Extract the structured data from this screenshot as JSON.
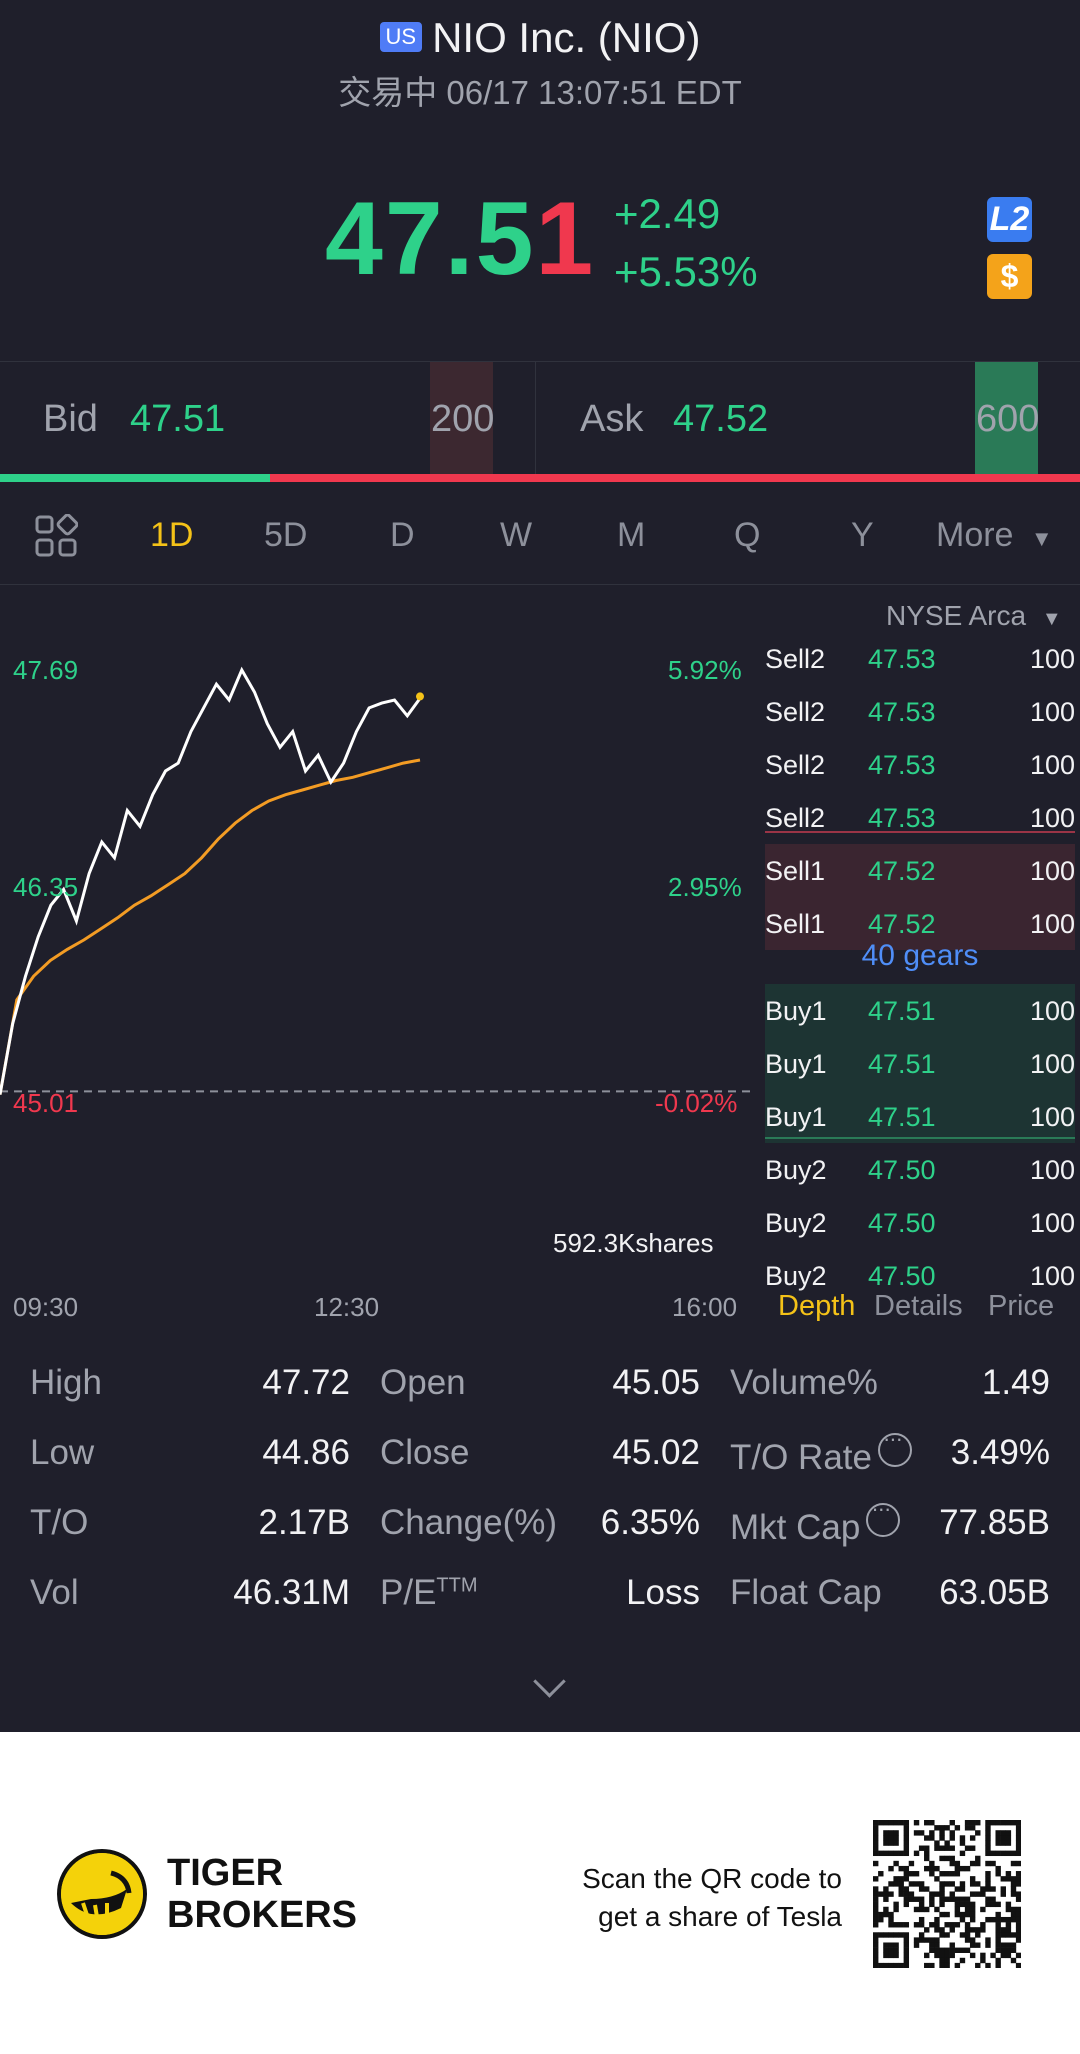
{
  "header": {
    "market_badge": "US",
    "title": "NIO Inc. (NIO)",
    "subtitle": "交易中 06/17 13:07:51 EDT"
  },
  "quote": {
    "price_int": "47.5",
    "price_last": "1",
    "change": "+2.49",
    "change_pct": "+5.53%",
    "l2_badge": "L2",
    "currency_badge": "$"
  },
  "bid_ask": {
    "bid_label": "Bid",
    "bid_price": "47.51",
    "bid_qty": "200",
    "ask_label": "Ask",
    "ask_price": "47.52",
    "ask_qty": "600",
    "bid_ratio": 0.25
  },
  "periods": {
    "items": [
      "1D",
      "5D",
      "D",
      "W",
      "M",
      "Q",
      "Y"
    ],
    "active": "1D",
    "more": "More"
  },
  "chart_data": {
    "type": "line",
    "price_ticks": [
      "47.69",
      "46.35",
      "45.01"
    ],
    "pct_ticks": [
      "5.92%",
      "2.95%",
      "-0.02%"
    ],
    "x_ticks": [
      "09:30",
      "12:30",
      "16:00"
    ],
    "volume_label": "592.3Kshares",
    "prev_close": 45.02,
    "ylim": [
      45.01,
      47.69
    ],
    "series": [
      {
        "values": [
          45.0,
          45.45,
          45.75,
          46.0,
          46.2,
          46.3,
          46.1,
          46.4,
          46.6,
          46.5,
          46.8,
          46.7,
          46.9,
          47.05,
          47.1,
          47.3,
          47.45,
          47.6,
          47.5,
          47.69,
          47.55,
          47.35,
          47.2,
          47.3,
          47.05,
          47.15,
          46.98,
          47.1,
          47.3,
          47.45,
          47.48,
          47.5,
          47.4,
          47.51
        ]
      },
      {
        "values": [
          45.0,
          45.6,
          45.75,
          45.85,
          45.92,
          45.98,
          46.05,
          46.12,
          46.2,
          46.26,
          46.33,
          46.4,
          46.5,
          46.62,
          46.72,
          46.8,
          46.86,
          46.9,
          46.93,
          46.96,
          46.99,
          47.01,
          47.04,
          47.07,
          47.1,
          47.12
        ]
      }
    ]
  },
  "order_book": {
    "exchange": "NYSE Arca",
    "rows": [
      {
        "side": "Sell2",
        "price": "47.53",
        "qty": "100"
      },
      {
        "side": "Sell2",
        "price": "47.53",
        "qty": "100"
      },
      {
        "side": "Sell2",
        "price": "47.53",
        "qty": "100"
      },
      {
        "side": "Sell2",
        "price": "47.53",
        "qty": "100"
      },
      {
        "side": "Sell1",
        "price": "47.52",
        "qty": "100"
      },
      {
        "side": "Sell1",
        "price": "47.52",
        "qty": "100"
      },
      {
        "side": "Buy1",
        "price": "47.51",
        "qty": "100"
      },
      {
        "side": "Buy1",
        "price": "47.51",
        "qty": "100"
      },
      {
        "side": "Buy1",
        "price": "47.51",
        "qty": "100"
      },
      {
        "side": "Buy2",
        "price": "47.50",
        "qty": "100"
      },
      {
        "side": "Buy2",
        "price": "47.50",
        "qty": "100"
      },
      {
        "side": "Buy2",
        "price": "47.50",
        "qty": "100"
      }
    ],
    "gears": "40 gears",
    "tabs": [
      "Depth",
      "Details",
      "Price"
    ]
  },
  "stats": [
    [
      {
        "label": "High",
        "value": "47.72"
      },
      {
        "label": "Open",
        "value": "45.05"
      },
      {
        "label": "Volume%",
        "value": "1.49"
      }
    ],
    [
      {
        "label": "Low",
        "value": "44.86"
      },
      {
        "label": "Close",
        "value": "45.02"
      },
      {
        "label": "T/O Rate",
        "value": "3.49%"
      }
    ],
    [
      {
        "label": "T/O",
        "value": "2.17B"
      },
      {
        "label": "Change(%)",
        "value": "6.35%"
      },
      {
        "label": "Mkt Cap",
        "value": "77.85B"
      }
    ],
    [
      {
        "label": "Vol",
        "value": "46.31M"
      },
      {
        "label": "P/E",
        "sup": "TTM",
        "value": "Loss"
      },
      {
        "label": "Float Cap",
        "value": "63.05B"
      }
    ]
  ],
  "footer": {
    "brand_line1": "TIGER",
    "brand_line2": "BROKERS",
    "scan_line1": "Scan the QR code to",
    "scan_line2": "get a share of Tesla"
  },
  "colors": {
    "up": "#2ed18a",
    "down": "#f0384e",
    "accent": "#f4c218",
    "bg": "#1f1f2b"
  }
}
